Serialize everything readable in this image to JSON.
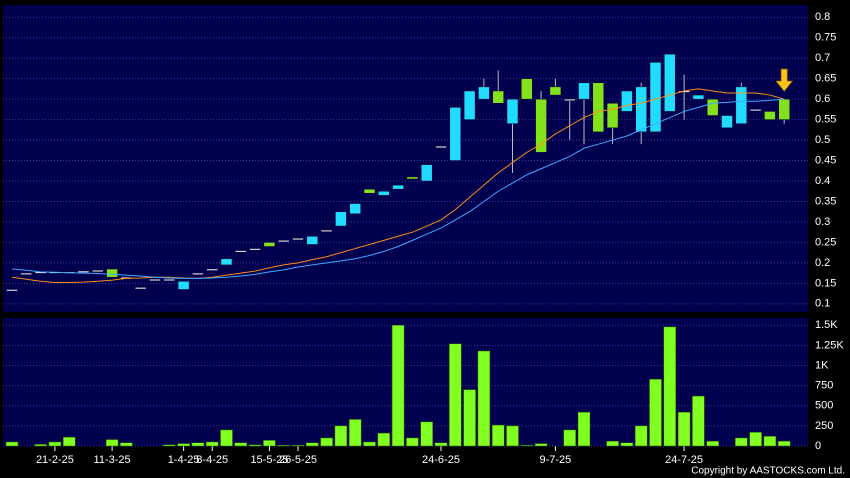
{
  "chart_data": [
    {
      "type": "candlestick",
      "categories": [
        null,
        null,
        null,
        "21-2-25",
        null,
        null,
        null,
        "11-3-25",
        null,
        null,
        null,
        null,
        "1-4-25",
        null,
        "8-4-25",
        null,
        null,
        null,
        "15-5-25",
        null,
        "26-5-25",
        null,
        null,
        null,
        null,
        null,
        null,
        null,
        null,
        null,
        "24-6-25",
        null,
        null,
        null,
        null,
        null,
        null,
        null,
        "9-7-25",
        null,
        null,
        null,
        null,
        null,
        null,
        null,
        null,
        "24-7-25",
        null,
        null,
        null,
        null,
        null,
        null,
        null
      ],
      "open": [
        0.135,
        0.175,
        0.178,
        0.178,
        0.178,
        0.18,
        0.182,
        0.185,
        0.165,
        0.14,
        0.16,
        0.16,
        0.135,
        0.175,
        0.185,
        0.195,
        0.23,
        0.235,
        0.25,
        0.255,
        0.26,
        0.245,
        0.28,
        0.29,
        0.32,
        0.38,
        0.365,
        0.38,
        0.41,
        0.4,
        0.485,
        0.45,
        0.55,
        0.6,
        0.62,
        0.54,
        0.65,
        0.6,
        0.63,
        0.6,
        0.6,
        0.64,
        0.59,
        0.57,
        0.52,
        0.52,
        0.57,
        0.62,
        0.6,
        0.6,
        0.53,
        0.54,
        0.575,
        0.57,
        0.6
      ],
      "high": [
        0.135,
        0.175,
        0.178,
        0.178,
        0.178,
        0.18,
        0.182,
        0.185,
        0.165,
        0.14,
        0.16,
        0.16,
        0.155,
        0.175,
        0.185,
        0.21,
        0.23,
        0.235,
        0.25,
        0.255,
        0.26,
        0.265,
        0.28,
        0.325,
        0.345,
        0.38,
        0.375,
        0.39,
        0.41,
        0.44,
        0.485,
        0.58,
        0.62,
        0.65,
        0.67,
        0.6,
        0.65,
        0.62,
        0.65,
        0.6,
        0.64,
        0.64,
        0.59,
        0.62,
        0.64,
        0.69,
        0.71,
        0.66,
        0.61,
        0.6,
        0.56,
        0.64,
        0.575,
        0.57,
        0.6
      ],
      "low": [
        0.135,
        0.175,
        0.178,
        0.178,
        0.178,
        0.18,
        0.182,
        0.165,
        0.165,
        0.14,
        0.16,
        0.16,
        0.135,
        0.175,
        0.185,
        0.195,
        0.23,
        0.235,
        0.24,
        0.255,
        0.26,
        0.245,
        0.28,
        0.29,
        0.32,
        0.37,
        0.365,
        0.38,
        0.405,
        0.4,
        0.485,
        0.45,
        0.55,
        0.6,
        0.59,
        0.42,
        0.6,
        0.47,
        0.61,
        0.5,
        0.49,
        0.52,
        0.49,
        0.57,
        0.49,
        0.52,
        0.57,
        0.55,
        0.6,
        0.56,
        0.53,
        0.54,
        0.575,
        0.55,
        0.54
      ],
      "close": [
        0.135,
        0.175,
        0.178,
        0.178,
        0.178,
        0.18,
        0.182,
        0.165,
        0.165,
        0.14,
        0.16,
        0.16,
        0.155,
        0.175,
        0.185,
        0.21,
        0.23,
        0.235,
        0.24,
        0.255,
        0.26,
        0.265,
        0.28,
        0.325,
        0.345,
        0.37,
        0.375,
        0.39,
        0.405,
        0.44,
        0.485,
        0.58,
        0.62,
        0.63,
        0.59,
        0.6,
        0.6,
        0.47,
        0.61,
        0.6,
        0.64,
        0.52,
        0.53,
        0.62,
        0.63,
        0.69,
        0.71,
        0.62,
        0.61,
        0.56,
        0.56,
        0.63,
        0.575,
        0.55,
        0.55
      ],
      "up_color": "#22dcff",
      "down_color": "#84e21c",
      "series": [
        {
          "color": "#ff8c1a",
          "values": [
            0.165,
            0.16,
            0.155,
            0.152,
            0.152,
            0.153,
            0.155,
            0.158,
            0.162,
            0.163,
            0.165,
            0.165,
            0.163,
            0.162,
            0.165,
            0.17,
            0.175,
            0.18,
            0.188,
            0.195,
            0.2,
            0.208,
            0.215,
            0.225,
            0.235,
            0.245,
            0.255,
            0.265,
            0.275,
            0.29,
            0.305,
            0.33,
            0.36,
            0.39,
            0.42,
            0.445,
            0.47,
            0.49,
            0.515,
            0.535,
            0.555,
            0.57,
            0.575,
            0.585,
            0.59,
            0.6,
            0.61,
            0.62,
            0.625,
            0.62,
            0.615,
            0.615,
            0.615,
            0.61,
            0.6
          ]
        },
        {
          "color": "#3fa9ff",
          "values": [
            0.185,
            0.182,
            0.178,
            0.177,
            0.176,
            0.175,
            0.174,
            0.172,
            0.17,
            0.168,
            0.165,
            0.163,
            0.162,
            0.162,
            0.163,
            0.165,
            0.168,
            0.172,
            0.178,
            0.183,
            0.19,
            0.195,
            0.2,
            0.205,
            0.21,
            0.218,
            0.228,
            0.24,
            0.255,
            0.27,
            0.285,
            0.305,
            0.325,
            0.35,
            0.375,
            0.395,
            0.415,
            0.43,
            0.445,
            0.46,
            0.48,
            0.49,
            0.5,
            0.51,
            0.525,
            0.54,
            0.555,
            0.57,
            0.58,
            0.59,
            0.592,
            0.595,
            0.595,
            0.597,
            0.6
          ]
        }
      ],
      "ylim": [
        0.08,
        0.83
      ],
      "yticks": [
        0.1,
        0.15,
        0.2,
        0.25,
        0.3,
        0.35,
        0.4,
        0.45,
        0.5,
        0.55,
        0.6,
        0.65,
        0.7,
        0.75,
        0.8
      ],
      "grid": true
    },
    {
      "type": "bar",
      "color": "#80ff20",
      "values": [
        50,
        0,
        20,
        50,
        110,
        0,
        0,
        80,
        40,
        0,
        0,
        15,
        30,
        40,
        50,
        200,
        40,
        15,
        70,
        10,
        10,
        40,
        100,
        250,
        330,
        50,
        160,
        1500,
        100,
        300,
        40,
        1270,
        700,
        1180,
        260,
        250,
        10,
        30,
        0,
        200,
        420,
        0,
        60,
        40,
        250,
        830,
        1480,
        420,
        620,
        60,
        0,
        100,
        170,
        120,
        60
      ],
      "ylim": [
        0,
        1590
      ],
      "yticks": [
        0,
        250,
        500,
        750,
        {
          "value": 1000,
          "label": "1K"
        },
        {
          "value": 1250,
          "label": "1.25K"
        },
        {
          "value": 1500,
          "label": "1.5K"
        }
      ],
      "grid": true
    }
  ],
  "copyright": "Copyright by AASTOCKS.com Ltd."
}
